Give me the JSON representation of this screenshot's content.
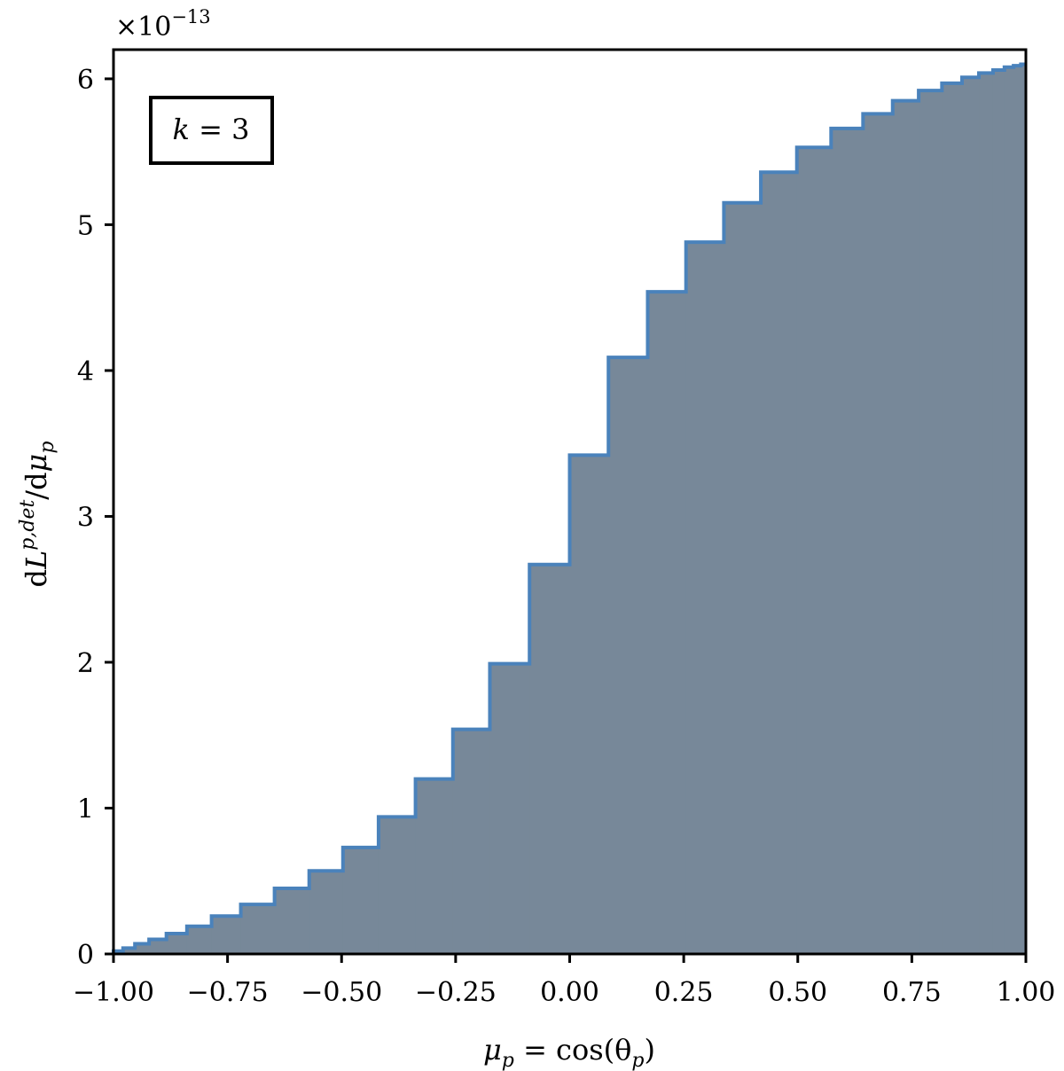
{
  "chart_data": {
    "type": "area",
    "style": "step histogram (filled)",
    "xlabel": {
      "sym": "μ",
      "sub": "p",
      "rest": " = cos(θ",
      "rest_sub": "p",
      "close": ")"
    },
    "ylabel": {
      "d1": "d",
      "L": "L",
      "sup": "p,det",
      "slash": "/d",
      "mu": "μ",
      "sub": "p"
    },
    "offset_text": {
      "times": "×10",
      "exp": "−13"
    },
    "annotation": {
      "k": "k",
      "eq": " = 3"
    },
    "xlim": [
      -1.0,
      1.0
    ],
    "ylim": [
      0,
      6.2
    ],
    "xticks": [
      -1.0,
      -0.75,
      -0.5,
      -0.25,
      0.0,
      0.25,
      0.5,
      0.75,
      1.0
    ],
    "xtick_labels": [
      "−1.00",
      "−0.75",
      "−0.50",
      "−0.25",
      "0.00",
      "0.25",
      "0.50",
      "0.75",
      "1.00"
    ],
    "yticks": [
      0,
      1,
      2,
      3,
      4,
      5,
      6
    ],
    "ytick_labels": [
      "0",
      "1",
      "2",
      "3",
      "4",
      "5",
      "6"
    ],
    "bin_edges": [
      -1.0,
      -0.979,
      -0.953,
      -0.922,
      -0.884,
      -0.839,
      -0.785,
      -0.721,
      -0.647,
      -0.571,
      -0.497,
      -0.419,
      -0.338,
      -0.256,
      -0.175,
      -0.088,
      0.0,
      0.085,
      0.171,
      0.255,
      0.338,
      0.419,
      0.498,
      0.573,
      0.643,
      0.708,
      0.765,
      0.816,
      0.86,
      0.897,
      0.928,
      0.953,
      0.973,
      0.989,
      1.0
    ],
    "values": [
      0.02,
      0.04,
      0.07,
      0.1,
      0.14,
      0.19,
      0.26,
      0.34,
      0.45,
      0.57,
      0.73,
      0.94,
      1.2,
      1.54,
      1.99,
      2.67,
      3.42,
      4.09,
      4.54,
      4.88,
      5.15,
      5.36,
      5.53,
      5.66,
      5.76,
      5.85,
      5.92,
      5.97,
      6.01,
      6.04,
      6.06,
      6.08,
      6.09,
      6.1
    ],
    "colors": {
      "fill": "#778899",
      "edge": "#4a82bb",
      "axes": "#000000"
    },
    "grid": false,
    "legend": "none"
  }
}
